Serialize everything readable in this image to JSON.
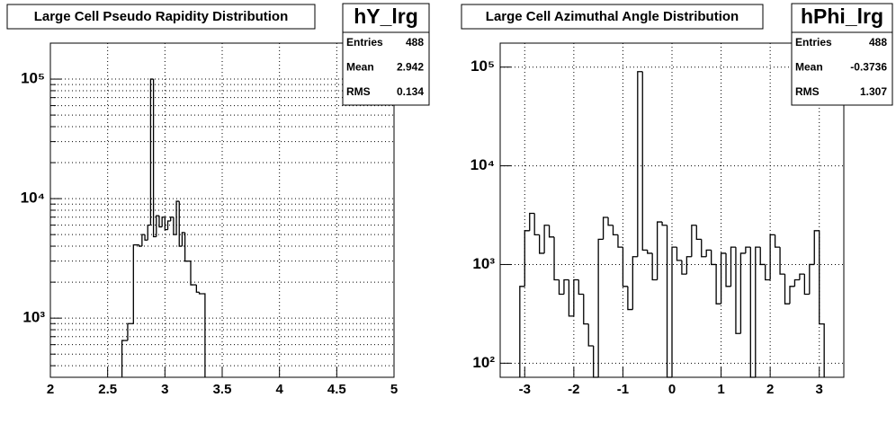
{
  "chart_data": [
    {
      "type": "histogram",
      "title": "Large Cell Pseudo Rapidity Distribution",
      "bins": [
        2.625,
        2.65,
        2.675,
        2.7,
        2.725,
        2.75,
        2.775,
        2.8,
        2.825,
        2.85,
        2.875,
        2.9,
        2.925,
        2.95,
        2.975,
        3.0,
        3.025,
        3.05,
        3.075,
        3.1,
        3.125,
        3.15,
        3.175,
        3.2,
        3.225,
        3.25,
        3.275,
        3.3,
        3.325,
        3.35
      ],
      "values": [
        650,
        650,
        900,
        900,
        4100,
        4100,
        4000,
        5000,
        4500,
        6000,
        100000,
        4800,
        7200,
        5800,
        7000,
        5500,
        6500,
        7000,
        5000,
        9500,
        4000,
        5200,
        3000,
        3000,
        1900,
        1900,
        1650,
        1600,
        1600
      ],
      "color": "#000000",
      "xlim": [
        2,
        5
      ],
      "xticks": [
        2,
        2.5,
        3,
        3.5,
        4,
        4.5,
        5
      ],
      "ylim": [
        320,
        200000
      ],
      "log_y": true,
      "grid": true,
      "yticks": [
        {
          "value": 1000,
          "label": "10³"
        },
        {
          "value": 10000,
          "label": "10⁴"
        },
        {
          "value": 100000,
          "label": "10⁵"
        }
      ],
      "minor_yticks": [
        400,
        500,
        600,
        700,
        800,
        900,
        2000,
        3000,
        4000,
        5000,
        6000,
        7000,
        8000,
        9000,
        20000,
        30000,
        40000,
        50000,
        60000,
        70000,
        80000,
        90000,
        200000
      ],
      "stats": {
        "name": "hY_lrg",
        "rows": [
          [
            "Entries",
            "488"
          ],
          [
            "Mean",
            "2.942"
          ],
          [
            "RMS",
            "0.134"
          ]
        ]
      }
    },
    {
      "type": "histogram",
      "title": "Large Cell Azimuthal Angle Distribution",
      "bins": [
        -3.1,
        -3.0,
        -2.9,
        -2.8,
        -2.7,
        -2.6,
        -2.5,
        -2.4,
        -2.3,
        -2.2,
        -2.1,
        -2.0,
        -1.9,
        -1.8,
        -1.7,
        -1.6,
        -1.5,
        -1.4,
        -1.3,
        -1.2,
        -1.1,
        -1.0,
        -0.9,
        -0.8,
        -0.7,
        -0.6,
        -0.5,
        -0.4,
        -0.3,
        -0.2,
        -0.1,
        0,
        0.1,
        0.2,
        0.3,
        0.4,
        0.5,
        0.6,
        0.7,
        0.8,
        0.9,
        1.0,
        1.1,
        1.2,
        1.3,
        1.4,
        1.5,
        1.6,
        1.7,
        1.8,
        1.9,
        2.0,
        2.1,
        2.2,
        2.3,
        2.4,
        2.5,
        2.6,
        2.7,
        2.8,
        2.9,
        3.0,
        3.1
      ],
      "values": [
        600,
        2200,
        3300,
        2000,
        1300,
        2500,
        1900,
        700,
        500,
        700,
        300,
        700,
        500,
        250,
        150,
        0,
        1800,
        3000,
        2500,
        2000,
        1500,
        600,
        350,
        1200,
        90000,
        1400,
        1300,
        700,
        2700,
        2500,
        0,
        1500,
        1100,
        800,
        1200,
        2500,
        1800,
        1200,
        1400,
        1000,
        400,
        1300,
        600,
        1500,
        200,
        1300,
        1500,
        0,
        1500,
        1000,
        700,
        2000,
        1500,
        800,
        400,
        600,
        700,
        800,
        500,
        1000,
        2200,
        250
      ],
      "color": "#000000",
      "xlim": [
        -3.5,
        3.5
      ],
      "xticks": [
        -3,
        -2,
        -1,
        0,
        1,
        2,
        3
      ],
      "ylim": [
        72,
        175000
      ],
      "log_y": true,
      "grid": true,
      "yticks": [
        {
          "value": 100,
          "label": "10²"
        },
        {
          "value": 1000,
          "label": "10³"
        },
        {
          "value": 10000,
          "label": "10⁴"
        },
        {
          "value": 100000,
          "label": "10⁵"
        }
      ],
      "minor_yticks": [],
      "stats": {
        "name": "hPhi_lrg",
        "rows": [
          [
            "Entries",
            "488"
          ],
          [
            "Mean",
            "-0.3736"
          ],
          [
            "RMS",
            "1.307"
          ]
        ]
      }
    }
  ]
}
